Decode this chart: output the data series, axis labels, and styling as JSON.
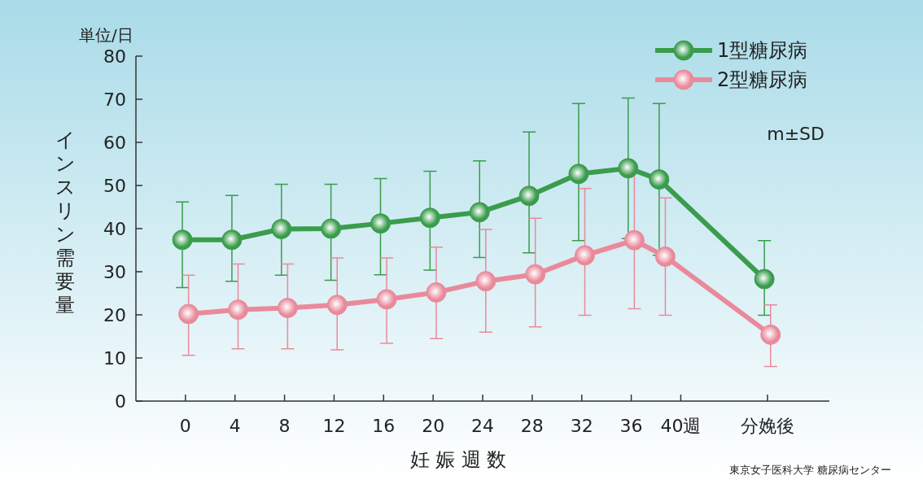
{
  "chart_data": {
    "type": "line",
    "xlabel": "妊 娠 週 数",
    "ylabel": "インスリン需要量",
    "annotations": [
      "単位/日",
      "m±SD",
      "東京女子医科大学 糖尿病センター"
    ],
    "xlim": [
      -4,
      52
    ],
    "ylim": [
      0,
      80
    ],
    "xticks": [
      0,
      4,
      8,
      12,
      16,
      20,
      24,
      28,
      32,
      36,
      {
        "value": 40,
        "label": "40週"
      },
      {
        "value": 47,
        "label": "分娩後"
      }
    ],
    "yticks": [
      0,
      10,
      20,
      30,
      40,
      50,
      60,
      70,
      80
    ],
    "legend": "top right",
    "marker": "circle",
    "line_style": "solid",
    "series": [
      {
        "name": "1型糖尿病",
        "color": "#3a9c4c",
        "x": [
          -0.25,
          3.75,
          7.75,
          11.75,
          15.75,
          19.75,
          23.75,
          27.75,
          31.75,
          35.75,
          38.25,
          46.75
        ],
        "values": [
          37.4,
          37.4,
          39.9,
          40,
          41.2,
          42.5,
          43.8,
          47.6,
          52.7,
          54,
          51.4,
          28.3
        ],
        "errors": [
          [
            26.3,
            46.2
          ],
          [
            27.8,
            47.7
          ],
          [
            29.2,
            50.3
          ],
          [
            28,
            50.3
          ],
          [
            29.3,
            51.6
          ],
          [
            30.4,
            53.3
          ],
          [
            33.3,
            55.7
          ],
          [
            34.4,
            62.4
          ],
          [
            37.2,
            69
          ],
          [
            37.7,
            70.3
          ],
          [
            33.8,
            69
          ],
          [
            19.9,
            37.2
          ]
        ]
      },
      {
        "name": "2型糖尿病",
        "color": "#e98a9b",
        "x": [
          0.25,
          4.25,
          8.25,
          12.25,
          16.25,
          20.25,
          24.25,
          28.25,
          32.25,
          36.25,
          38.75,
          47.25
        ],
        "values": [
          20.2,
          21.2,
          21.6,
          22.3,
          23.6,
          25.2,
          27.8,
          29.4,
          33.8,
          37.3,
          33.5,
          15.4
        ],
        "errors": [
          [
            10.6,
            29.2
          ],
          [
            12.1,
            31.8
          ],
          [
            12.1,
            31.8
          ],
          [
            11.9,
            33.2
          ],
          [
            13.4,
            33.2
          ],
          [
            14.5,
            35.7
          ],
          [
            16,
            39.8
          ],
          [
            17.2,
            42.4
          ],
          [
            19.9,
            49.3
          ],
          [
            21.4,
            53.2
          ],
          [
            19.9,
            47.1
          ],
          [
            8,
            22.3
          ]
        ]
      }
    ]
  }
}
